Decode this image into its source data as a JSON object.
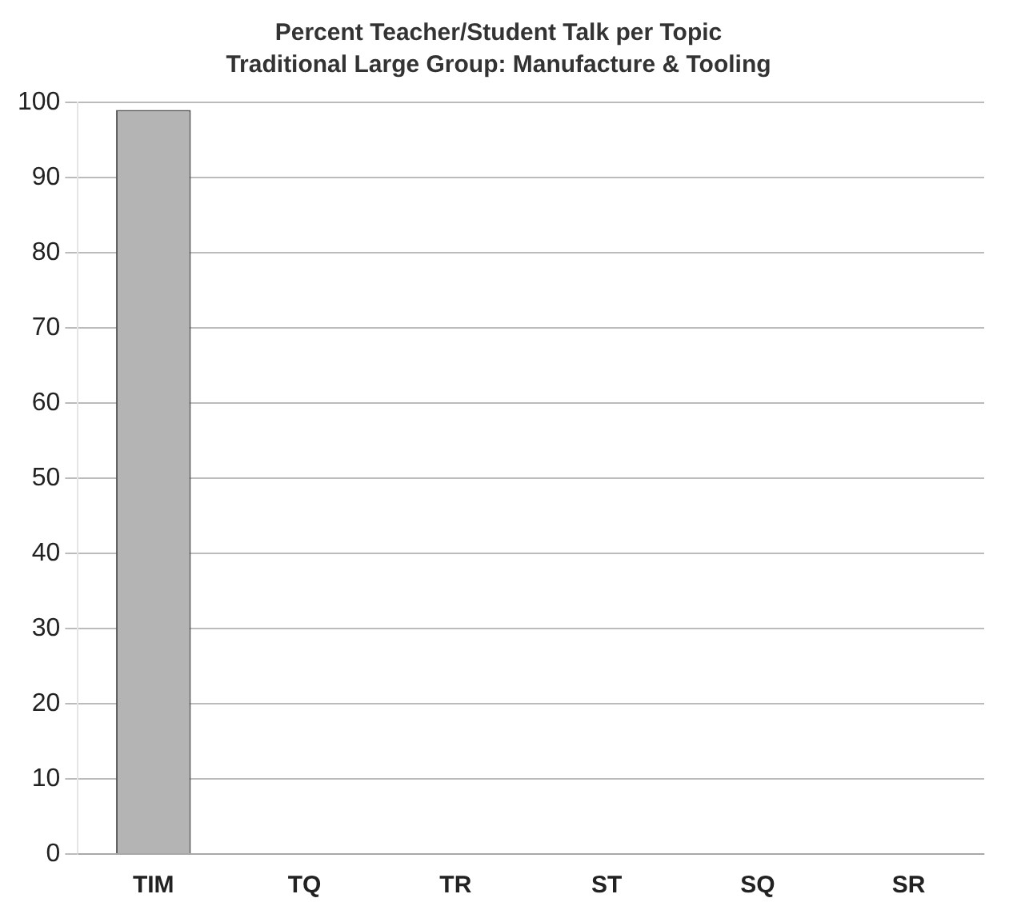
{
  "chart_data": {
    "type": "bar",
    "title": "Percent Teacher/Student Talk per Topic",
    "subtitle": "Traditional Large Group: Manufacture & Tooling",
    "categories": [
      "TIM",
      "TQ",
      "TR",
      "ST",
      "SQ",
      "SR"
    ],
    "values": [
      99,
      0,
      0,
      0,
      0,
      0
    ],
    "colors": [
      "#b4b4b4",
      "#707070",
      "#a6a6a6",
      "#a6a6a6",
      "#707070",
      "#a6a6a6"
    ],
    "ylim": [
      0,
      100
    ],
    "yticks": [
      0,
      10,
      20,
      30,
      40,
      50,
      60,
      70,
      80,
      90,
      100
    ],
    "grid": "y"
  }
}
